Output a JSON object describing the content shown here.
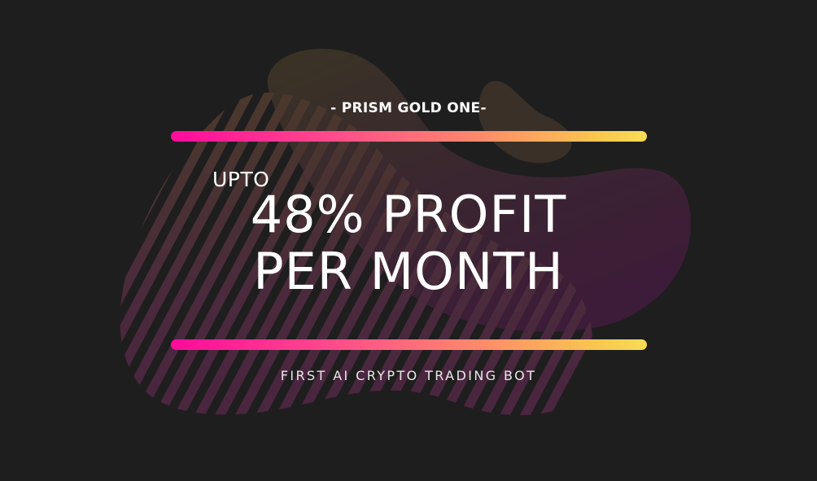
{
  "banner": {
    "subtitle": "- PRISM GOLD ONE-",
    "upto": "UPTO",
    "headline_line1": "48% PROFIT",
    "headline_line2": "PER MONTH",
    "tagline": "FIRST AI CRYPTO TRADING BOT"
  },
  "colors": {
    "background": "#1e1e1e",
    "bar_gradient_start": "#ff0a9c",
    "bar_gradient_end": "#f7dc55",
    "text": "#ffffff"
  }
}
